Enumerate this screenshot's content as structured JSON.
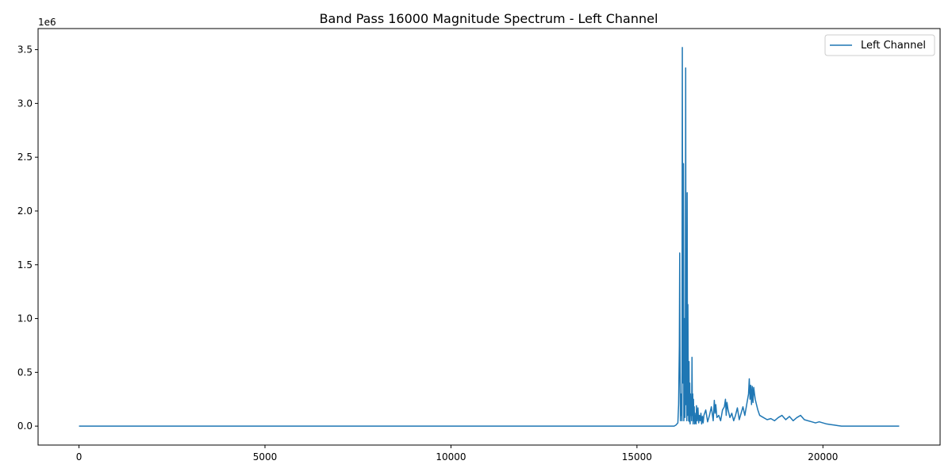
{
  "chart_data": {
    "type": "line",
    "title": "Band Pass 16000 Magnitude Spectrum - Left Channel",
    "xlabel": "",
    "ylabel": "",
    "y_offset_label": "1e6",
    "xlim": [
      -1100,
      23150
    ],
    "ylim": [
      -0.176,
      3.696
    ],
    "x_ticks": [
      0,
      5000,
      10000,
      15000,
      20000
    ],
    "x_tick_labels": [
      "0",
      "5000",
      "10000",
      "15000",
      "20000"
    ],
    "y_ticks": [
      0.0,
      0.5,
      1.0,
      1.5,
      2.0,
      2.5,
      3.0,
      3.5
    ],
    "y_tick_labels": [
      "0.0",
      "0.5",
      "1.0",
      "1.5",
      "2.0",
      "2.5",
      "3.0",
      "3.5"
    ],
    "grid": false,
    "legend_position": "top-right",
    "series": [
      {
        "name": "Left Channel",
        "color": "#1f77b4",
        "x": [
          0,
          16000,
          16050,
          16100,
          16120,
          16140,
          16150,
          16160,
          16170,
          16180,
          16190,
          16200,
          16210,
          16220,
          16230,
          16240,
          16250,
          16260,
          16270,
          16280,
          16290,
          16300,
          16310,
          16320,
          16330,
          16340,
          16350,
          16360,
          16370,
          16380,
          16390,
          16400,
          16410,
          16420,
          16430,
          16440,
          16450,
          16460,
          16470,
          16480,
          16490,
          16500,
          16510,
          16520,
          16530,
          16540,
          16550,
          16560,
          16570,
          16580,
          16590,
          16600,
          16620,
          16640,
          16660,
          16680,
          16700,
          16720,
          16740,
          16760,
          16780,
          16800,
          16850,
          16900,
          16950,
          17000,
          17050,
          17080,
          17100,
          17120,
          17150,
          17200,
          17250,
          17300,
          17350,
          17380,
          17400,
          17420,
          17450,
          17500,
          17550,
          17600,
          17650,
          17700,
          17750,
          17800,
          17850,
          17900,
          17950,
          18000,
          18020,
          18040,
          18060,
          18080,
          18100,
          18120,
          18140,
          18160,
          18180,
          18200,
          18250,
          18300,
          18400,
          18500,
          18600,
          18700,
          18800,
          18900,
          19000,
          19100,
          19200,
          19300,
          19400,
          19500,
          19600,
          19700,
          19800,
          19900,
          20000,
          20100,
          20200,
          20300,
          20400,
          20500,
          20600,
          22050
        ],
        "values": [
          0,
          0,
          0.01,
          0.03,
          0.2,
          0.75,
          1.61,
          0.5,
          0.05,
          0.3,
          0.1,
          0.25,
          0.05,
          3.52,
          1.2,
          0.4,
          2.44,
          0.05,
          0.3,
          1.0,
          0.08,
          0.6,
          3.33,
          0.2,
          1.15,
          0.05,
          2.17,
          0.1,
          1.13,
          0.3,
          0.05,
          0.6,
          0.04,
          0.4,
          0.02,
          0.3,
          0.1,
          0.2,
          0.05,
          0.64,
          0.1,
          0.3,
          0.02,
          0.25,
          0.05,
          0.18,
          0.02,
          0.1,
          0.03,
          0.12,
          0.02,
          0.19,
          0.05,
          0.17,
          0.03,
          0.1,
          0.05,
          0.12,
          0.02,
          0.09,
          0.03,
          0.1,
          0.15,
          0.04,
          0.1,
          0.18,
          0.05,
          0.24,
          0.12,
          0.2,
          0.08,
          0.1,
          0.05,
          0.15,
          0.18,
          0.25,
          0.1,
          0.22,
          0.15,
          0.08,
          0.12,
          0.05,
          0.1,
          0.17,
          0.06,
          0.12,
          0.18,
          0.1,
          0.2,
          0.3,
          0.44,
          0.25,
          0.38,
          0.2,
          0.37,
          0.22,
          0.36,
          0.3,
          0.25,
          0.22,
          0.15,
          0.1,
          0.08,
          0.06,
          0.07,
          0.05,
          0.08,
          0.1,
          0.06,
          0.09,
          0.05,
          0.08,
          0.1,
          0.06,
          0.05,
          0.04,
          0.03,
          0.04,
          0.03,
          0.02,
          0.015,
          0.01,
          0.005,
          0.0,
          0.0,
          0.0
        ]
      }
    ]
  }
}
